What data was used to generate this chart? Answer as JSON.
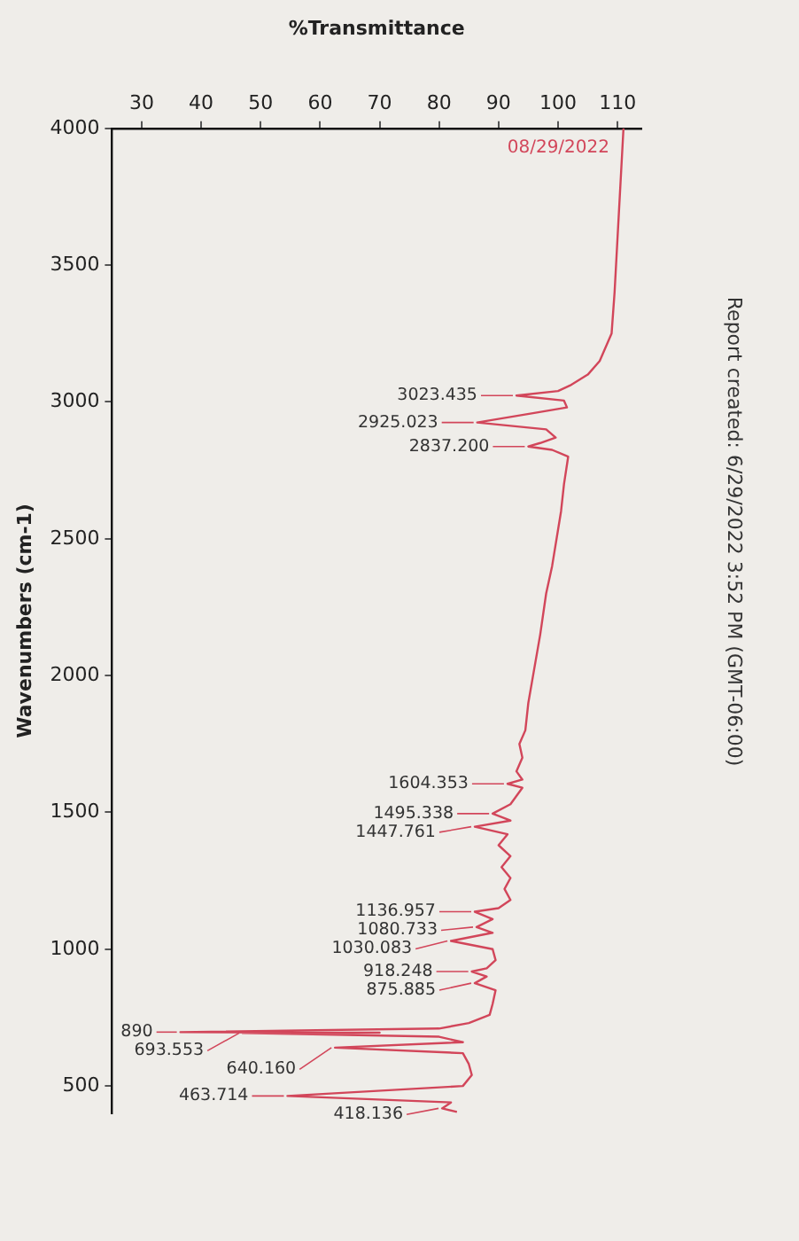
{
  "chart_data": {
    "type": "line",
    "xlabel": "%Transmittance",
    "ylabel": "Wavenumbers (cm-1)",
    "xlim": [
      25,
      114
    ],
    "xticks": [
      30,
      40,
      50,
      60,
      70,
      80,
      90,
      100,
      110
    ],
    "ylim": [
      400,
      4000
    ],
    "yticks": [
      4000,
      3500,
      3000,
      2500,
      2000,
      1500,
      1000,
      500
    ],
    "grid": false,
    "legend": false,
    "series": [
      {
        "color": "#d2465a",
        "values": [
          4000,
          3800,
          3600,
          3400,
          3250,
          3150,
          3100,
          3060,
          3040,
          3023.435,
          3005,
          2980,
          2960,
          2925.023,
          2900,
          2870,
          2850,
          2837.2,
          2825,
          2800,
          2700,
          2600,
          2400,
          2300,
          2150,
          2000,
          1900,
          1800,
          1750,
          1700,
          1650,
          1620,
          1604.353,
          1590,
          1560,
          1530,
          1495.338,
          1470,
          1447.761,
          1420,
          1380,
          1340,
          1300,
          1260,
          1220,
          1180,
          1150,
          1136.957,
          1110,
          1080.733,
          1060,
          1030.083,
          1000,
          960,
          930,
          918.248,
          900,
          875.885,
          850,
          800,
          760,
          730,
          710,
          697,
          695,
          693.553,
          680,
          660,
          640.16,
          620,
          580,
          540,
          500,
          463.714,
          440,
          418.136,
          405
        ],
        "x": [
          111,
          110.5,
          110,
          109.5,
          109,
          107,
          105,
          102,
          100,
          93,
          101,
          101.5,
          96,
          86.4,
          98,
          99.6,
          97,
          95,
          99,
          101.7,
          101,
          100.5,
          99,
          98,
          97,
          95.8,
          95,
          94.5,
          93.5,
          94,
          93,
          94,
          91.5,
          94,
          93,
          92,
          89,
          92,
          86,
          91.5,
          90,
          92,
          90.5,
          92,
          91,
          92,
          90,
          86,
          89,
          86.3,
          89,
          82,
          89,
          89.5,
          88,
          85.5,
          88,
          86,
          89.5,
          89,
          88.5,
          85,
          80,
          36.5,
          70,
          47,
          80,
          84,
          62.5,
          84,
          85,
          85.5,
          84,
          54.5,
          82,
          80.5,
          83
        ]
      }
    ],
    "annotations": [
      "08/29/2022",
      "Report created: 6/29/2022 3:52 PM (GMT-06:00)",
      {
        "text": "3023.435",
        "y": 3023.435,
        "x": 93
      },
      {
        "text": "2925.023",
        "y": 2925.023,
        "x": 86.4
      },
      {
        "text": "2837.200",
        "y": 2837.2,
        "x": 95
      },
      {
        "text": "1604.353",
        "y": 1604.353,
        "x": 91.5
      },
      {
        "text": "1495.338",
        "y": 1495.338,
        "x": 89
      },
      {
        "text": "1447.761",
        "y": 1447.761,
        "x": 86
      },
      {
        "text": "1136.957",
        "y": 1136.957,
        "x": 86
      },
      {
        "text": "1080.733",
        "y": 1080.733,
        "x": 86.3
      },
      {
        "text": "1030.083",
        "y": 1030.083,
        "x": 82
      },
      {
        "text": "918.248",
        "y": 918.248,
        "x": 85.5
      },
      {
        "text": "875.885",
        "y": 875.885,
        "x": 86
      },
      {
        "text": "890",
        "y": 697,
        "x": 36.5
      },
      {
        "text": "693.553",
        "y": 693.553,
        "x": 47
      },
      {
        "text": "640.160",
        "y": 640.16,
        "x": 62.5
      },
      {
        "text": "463.714",
        "y": 463.714,
        "x": 54.5
      },
      {
        "text": "418.136",
        "y": 418.136,
        "x": 80.5
      }
    ]
  }
}
